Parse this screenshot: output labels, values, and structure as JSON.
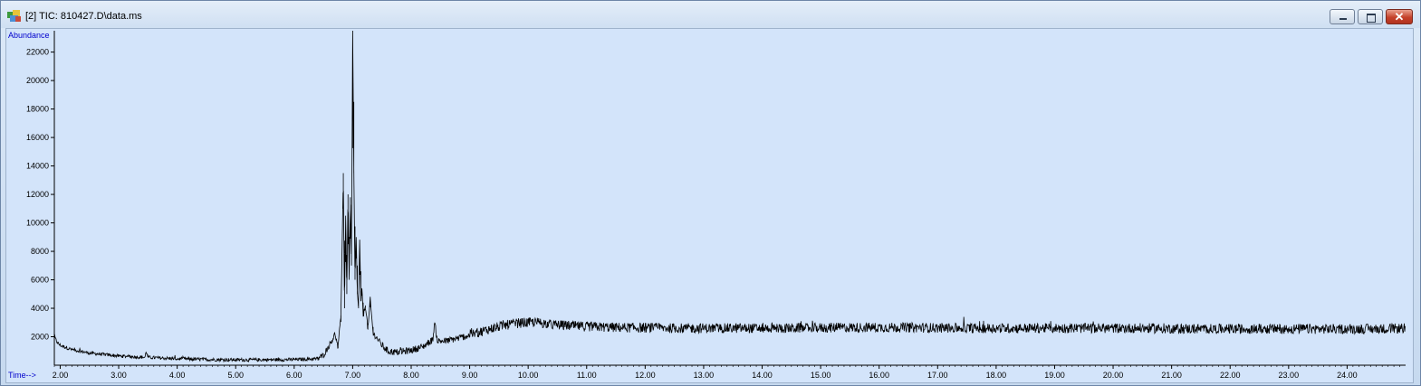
{
  "window": {
    "title": "[2] TIC: 810427.D\\data.ms",
    "icon": "chromatogram-app-icon",
    "buttons": {
      "minimize": "minimize-icon",
      "maximize": "maximize-icon",
      "close": "✕"
    }
  },
  "colors": {
    "label_blue": "#0000cc",
    "trace": "#000000",
    "plot_bg": "#d3e4fa"
  },
  "chart_data": {
    "type": "line",
    "title": "",
    "ylabel": "Abundance",
    "xlabel": "Time-->",
    "xlim": [
      1.9,
      25.0
    ],
    "ylim": [
      0,
      23500
    ],
    "x_ticks": [
      "2.00",
      "3.00",
      "4.00",
      "5.00",
      "6.00",
      "7.00",
      "8.00",
      "9.00",
      "10.00",
      "11.00",
      "12.00",
      "13.00",
      "14.00",
      "15.00",
      "16.00",
      "17.00",
      "18.00",
      "19.00",
      "20.00",
      "21.00",
      "22.00",
      "23.00",
      "24.00"
    ],
    "y_ticks": [
      "2000",
      "4000",
      "6000",
      "8000",
      "10000",
      "12000",
      "14000",
      "16000",
      "18000",
      "20000",
      "22000"
    ],
    "series": [
      {
        "values_note_free": true,
        "points": [
          [
            1.9,
            2000
          ],
          [
            1.95,
            1600
          ],
          [
            2.0,
            1400
          ],
          [
            2.2,
            1100
          ],
          [
            2.5,
            850
          ],
          [
            3.0,
            650
          ],
          [
            3.45,
            550
          ],
          [
            3.47,
            1000
          ],
          [
            3.5,
            550
          ],
          [
            4.0,
            450
          ],
          [
            4.5,
            400
          ],
          [
            5.0,
            380
          ],
          [
            5.5,
            380
          ],
          [
            6.0,
            400
          ],
          [
            6.4,
            450
          ],
          [
            6.5,
            700
          ],
          [
            6.6,
            1400
          ],
          [
            6.7,
            2200
          ],
          [
            6.75,
            1200
          ],
          [
            6.8,
            3500
          ],
          [
            6.84,
            13500
          ],
          [
            6.86,
            4000
          ],
          [
            6.88,
            10500
          ],
          [
            6.9,
            5000
          ],
          [
            6.92,
            12000
          ],
          [
            6.94,
            6000
          ],
          [
            6.96,
            11800
          ],
          [
            6.98,
            7000
          ],
          [
            7.0,
            23500
          ],
          [
            7.02,
            13500
          ],
          [
            7.04,
            6000
          ],
          [
            7.06,
            9000
          ],
          [
            7.08,
            5000
          ],
          [
            7.1,
            4000
          ],
          [
            7.12,
            8700
          ],
          [
            7.14,
            4500
          ],
          [
            7.16,
            5300
          ],
          [
            7.18,
            3500
          ],
          [
            7.22,
            4200
          ],
          [
            7.26,
            2500
          ],
          [
            7.3,
            4600
          ],
          [
            7.35,
            2200
          ],
          [
            7.4,
            2000
          ],
          [
            7.5,
            1400
          ],
          [
            7.6,
            1000
          ],
          [
            7.75,
            900
          ],
          [
            8.0,
            1050
          ],
          [
            8.2,
            1300
          ],
          [
            8.37,
            1800
          ],
          [
            8.4,
            3000
          ],
          [
            8.45,
            1700
          ],
          [
            8.6,
            1700
          ],
          [
            8.8,
            1900
          ],
          [
            9.0,
            2100
          ],
          [
            9.3,
            2500
          ],
          [
            9.6,
            2800
          ],
          [
            9.8,
            2950
          ],
          [
            10.0,
            3000
          ],
          [
            10.2,
            3000
          ],
          [
            10.4,
            2850
          ],
          [
            10.8,
            2750
          ],
          [
            11.5,
            2650
          ],
          [
            12.5,
            2600
          ],
          [
            13.5,
            2600
          ],
          [
            14.5,
            2600
          ],
          [
            15.5,
            2650
          ],
          [
            16.5,
            2650
          ],
          [
            17.5,
            2600
          ],
          [
            18.5,
            2600
          ],
          [
            19.5,
            2600
          ],
          [
            20.5,
            2600
          ],
          [
            21.5,
            2550
          ],
          [
            22.5,
            2550
          ],
          [
            23.5,
            2550
          ],
          [
            24.5,
            2550
          ],
          [
            25.0,
            2600
          ]
        ],
        "noise_amplitude": 350
      }
    ],
    "grid": false,
    "legend": "none"
  }
}
